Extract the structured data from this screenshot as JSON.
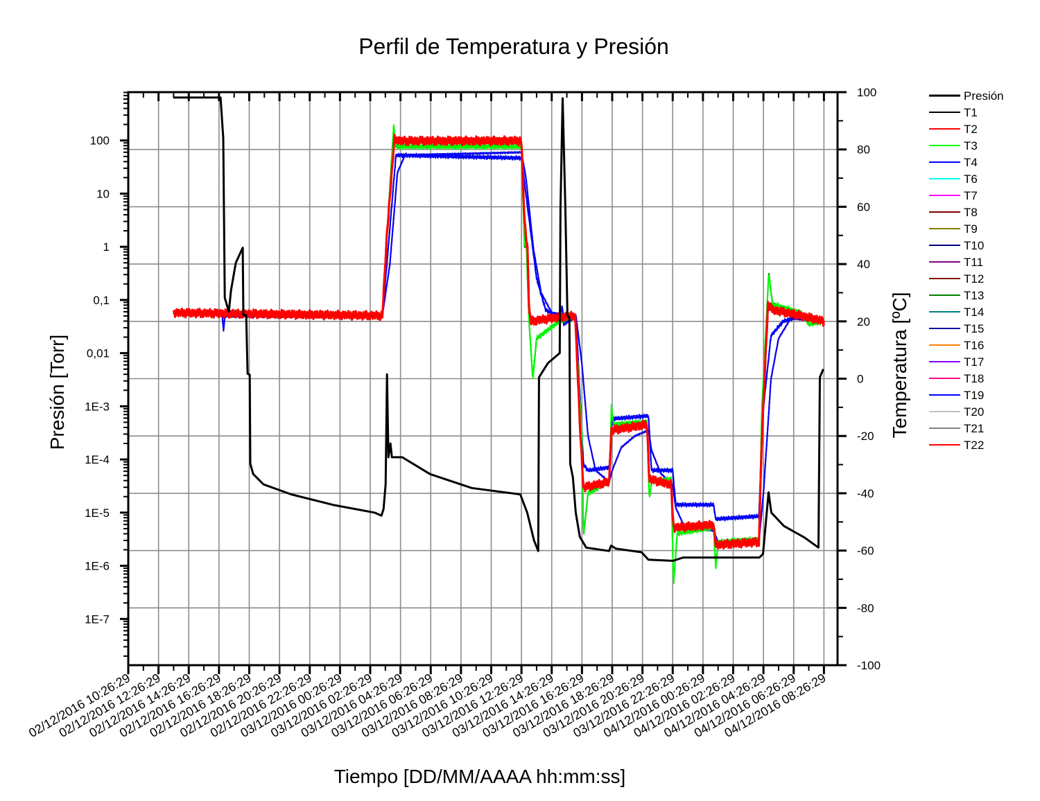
{
  "chart_data": {
    "type": "line",
    "title": "Perfil de Temperatura y Presión",
    "xlabel": "Tiempo [DD/MM/AAAA hh:mm:ss]",
    "ylabel_left": "Presión [Torr]",
    "ylabel_right": "Temperatura [ºC]",
    "x_unit": "hours since 02/12/2016 10:26:29",
    "xlim": [
      0,
      46.9
    ],
    "ylim_left": [
      1.35e-08,
      810
    ],
    "yscale_left": "log",
    "ylim_right": [
      -100,
      100
    ],
    "grid": true,
    "legend_position": "right",
    "x_tick_labels": [
      "02/12/2016 10:26:29",
      "02/12/2016 12:26:29",
      "02/12/2016 14:26:29",
      "02/12/2016 16:26:29",
      "02/12/2016 18:26:29",
      "02/12/2016 20:26:29",
      "02/12/2016 22:26:29",
      "03/12/2016 00:26:29",
      "03/12/2016 02:26:29",
      "03/12/2016 04:26:29",
      "03/12/2016 06:26:29",
      "03/12/2016 08:26:29",
      "03/12/2016 10:26:29",
      "03/12/2016 12:26:29",
      "03/12/2016 14:26:29",
      "03/12/2016 16:26:29",
      "03/12/2016 18:26:29",
      "03/12/2016 20:26:29",
      "03/12/2016 22:26:29",
      "04/12/2016 00:26:29",
      "04/12/2016 02:26:29",
      "04/12/2016 04:26:29",
      "04/12/2016 06:26:29",
      "04/12/2016 08:26:29"
    ],
    "x_tick_step_hours": 2,
    "left_ticks": [
      {
        "value": 100,
        "label": "100"
      },
      {
        "value": 10,
        "label": "10"
      },
      {
        "value": 1,
        "label": "1"
      },
      {
        "value": 0.1,
        "label": "0,1"
      },
      {
        "value": 0.01,
        "label": "0,01"
      },
      {
        "value": 0.001,
        "label": "1E-3"
      },
      {
        "value": 0.0001,
        "label": "1E-4"
      },
      {
        "value": 1e-05,
        "label": "1E-5"
      },
      {
        "value": 1e-06,
        "label": "1E-6"
      },
      {
        "value": 1e-07,
        "label": "1E-7"
      }
    ],
    "right_ticks": [
      {
        "value": 100,
        "label": "100"
      },
      {
        "value": 80,
        "label": "80"
      },
      {
        "value": 60,
        "label": "60"
      },
      {
        "value": 40,
        "label": "40"
      },
      {
        "value": 20,
        "label": "20"
      },
      {
        "value": 0,
        "label": "0"
      },
      {
        "value": -20,
        "label": "-20"
      },
      {
        "value": -40,
        "label": "-40"
      },
      {
        "value": -60,
        "label": "-60"
      },
      {
        "value": -80,
        "label": "-80"
      },
      {
        "value": -100,
        "label": "-100"
      }
    ],
    "pressure": {
      "name": "Presión",
      "color": "#000000",
      "axis": "left",
      "x": [
        2.98,
        6.1,
        6.28,
        6.38,
        6.65,
        6.79,
        7.11,
        7.57,
        7.61,
        7.8,
        7.89,
        8.03,
        8.07,
        8.26,
        8.94,
        10.78,
        13.53,
        16.28,
        16.74,
        16.88,
        17.02,
        17.11,
        17.2,
        17.34,
        17.43,
        18.12,
        19.95,
        22.71,
        25.92,
        26.38,
        26.83,
        27.11,
        27.16,
        27.75,
        28.53,
        28.58,
        28.72,
        28.9,
        29.04,
        29.17,
        29.22,
        29.4,
        29.59,
        29.86,
        30.28,
        31.79,
        31.93,
        32.25,
        33.94,
        34.4,
        36.01,
        36.7,
        41.74,
        41.97,
        42.34,
        42.52,
        43.35,
        44.72,
        45.64,
        45.73,
        45.96
      ],
      "y": [
        641,
        641,
        110,
        0.11,
        0.06,
        0.148,
        0.5,
        0.96,
        0.052,
        0.052,
        0.0041,
        0.0039,
        8.3e-05,
        5.3e-05,
        3.4e-05,
        2.2e-05,
        1.4e-05,
        1e-05,
        8.8e-06,
        1.17e-05,
        3.4e-05,
        0.004,
        0.00011,
        0.0002,
        0.00011,
        0.00011,
        5.3e-05,
        2.9e-05,
        2.2e-05,
        1e-05,
        3e-06,
        1.9e-06,
        0.0035,
        0.0065,
        0.01,
        5.5,
        620,
        5.5,
        0.052,
        0.045,
        8.3e-05,
        4.6e-05,
        1e-05,
        3.5e-06,
        2.2e-06,
        1.9e-06,
        2.4e-06,
        2.1e-06,
        1.8e-06,
        1.3e-06,
        1.24e-06,
        1.43e-06,
        1.43e-06,
        1.67e-06,
        2.4e-05,
        1e-05,
        5.6e-06,
        3.4e-06,
        2.2e-06,
        0.0035,
        0.005
      ]
    },
    "temperature_profiles": {
      "fast": {
        "x": [
          3.0,
          16.8,
          17.1,
          17.6,
          17.9,
          26.0,
          26.2,
          26.4,
          26.5,
          26.6,
          28.5,
          29.55,
          29.9,
          30.1,
          31.8,
          31.95,
          34.3,
          34.45,
          35.9,
          36.05,
          38.7,
          38.85,
          41.7,
          41.9,
          42.3,
          42.6,
          44.5,
          46.0
        ],
        "y": [
          23,
          22,
          50,
          84,
          83,
          83,
          55,
          45,
          25,
          20,
          21.5,
          22,
          -20,
          -38,
          -36,
          -18,
          -16,
          -35,
          -37,
          -52,
          -51,
          -58,
          -57,
          -20,
          26,
          24,
          22,
          20
        ]
      },
      "overshoot": {
        "x": [
          3.0,
          16.8,
          17.1,
          17.55,
          17.7,
          26.0,
          26.2,
          26.3,
          26.5,
          26.75,
          27.0,
          28.5,
          29.55,
          30.0,
          30.1,
          30.4,
          31.8,
          31.95,
          32.1,
          34.3,
          34.45,
          34.6,
          35.9,
          36.05,
          36.3,
          38.7,
          38.85,
          39.0,
          41.7,
          41.9,
          42.35,
          42.6,
          44.5,
          45.0,
          46.0
        ],
        "y": [
          23,
          22,
          50,
          88,
          81,
          81,
          45,
          50,
          20,
          0,
          14,
          20,
          22,
          -20,
          -55,
          -40,
          -36,
          -10,
          -16,
          -15,
          -42,
          -36,
          -35,
          -72,
          -54,
          -52,
          -66,
          -57,
          -56,
          -10,
          37,
          26,
          23,
          19,
          20
        ]
      },
      "offset": {
        "x": [
          3.0,
          6.2,
          6.3,
          6.4,
          16.8,
          17.1,
          17.7,
          26.0,
          26.4,
          27.0,
          27.6,
          28.5,
          28.7,
          28.8,
          29.6,
          30.1,
          30.4,
          31.8,
          32.0,
          34.4,
          34.6,
          36.0,
          36.2,
          38.7,
          38.85,
          41.7,
          42.0,
          42.5,
          43.3,
          44.5,
          46.0
        ],
        "y": [
          23,
          23,
          17,
          22,
          22,
          40,
          78,
          77,
          60,
          35,
          24,
          21.5,
          25,
          19,
          22,
          -30,
          -32,
          -31,
          -14,
          -13,
          -32,
          -32,
          -44,
          -44,
          -49,
          -48,
          -10,
          15,
          20,
          22,
          20
        ]
      },
      "slow": {
        "x": [
          3.0,
          16.8,
          17.3,
          17.8,
          18.3,
          26.0,
          26.3,
          26.8,
          27.3,
          28.0,
          29.6,
          30.0,
          30.4,
          30.9,
          31.8,
          32.0,
          32.6,
          33.5,
          34.4,
          34.6,
          35.2,
          36.0,
          36.2,
          36.8,
          38.7,
          39.0,
          41.7,
          42.0,
          42.5,
          43.0,
          43.8,
          46.0
        ],
        "y": [
          23,
          22,
          40,
          72,
          78,
          79,
          70,
          45,
          30,
          23,
          22,
          5,
          -20,
          -32,
          -36,
          -32,
          -24,
          -20,
          -18,
          -25,
          -33,
          -37,
          -45,
          -52,
          -53,
          -57,
          -57,
          -40,
          0,
          14,
          21,
          20
        ]
      }
    },
    "series": [
      {
        "name": "T1",
        "color": "#000000",
        "profile": "fast",
        "noise": 0.6
      },
      {
        "name": "T2",
        "color": "#ff0000",
        "profile": "fast",
        "noise": 1.4
      },
      {
        "name": "T3",
        "color": "#00ff00",
        "profile": "overshoot",
        "noise": 1.0
      },
      {
        "name": "T4",
        "color": "#0000ff",
        "profile": "offset",
        "noise": 0.8
      },
      {
        "name": "T6",
        "color": "#00ffff",
        "profile": "slow",
        "noise": 0.2
      },
      {
        "name": "T7",
        "color": "#ff00ff",
        "profile": "slow",
        "noise": 0.2
      },
      {
        "name": "T8",
        "color": "#800000",
        "profile": "fast",
        "noise": 0.5
      },
      {
        "name": "T9",
        "color": "#808000",
        "profile": "fast",
        "noise": 0.5
      },
      {
        "name": "T10",
        "color": "#000080",
        "profile": "fast",
        "noise": 0.5
      },
      {
        "name": "T11",
        "color": "#800080",
        "profile": "slow",
        "noise": 0.2
      },
      {
        "name": "T12",
        "color": "#800000",
        "profile": "fast",
        "noise": 0.5
      },
      {
        "name": "T13",
        "color": "#008000",
        "profile": "overshoot",
        "noise": 0.5
      },
      {
        "name": "T14",
        "color": "#008080",
        "profile": "fast",
        "noise": 0.5
      },
      {
        "name": "T15",
        "color": "#0000a0",
        "profile": "offset",
        "noise": 0.5
      },
      {
        "name": "T16",
        "color": "#ff8000",
        "profile": "fast",
        "noise": 0.5
      },
      {
        "name": "T17",
        "color": "#8000ff",
        "profile": "slow",
        "noise": 0.2
      },
      {
        "name": "T18",
        "color": "#ff0080",
        "profile": "slow",
        "noise": 0.2
      },
      {
        "name": "T19",
        "color": "#0000ff",
        "profile": "slow",
        "noise": 0.3
      },
      {
        "name": "T20",
        "color": "#c0c0c0",
        "profile": "slow",
        "noise": 0.2
      },
      {
        "name": "T21",
        "color": "#808080",
        "profile": "slow",
        "noise": 0.2
      },
      {
        "name": "T22",
        "color": "#ff0000",
        "profile": "fast",
        "noise": 1.6
      }
    ],
    "draw_order": [
      "T6",
      "T7",
      "T11",
      "T17",
      "T18",
      "T20",
      "T21",
      "T19",
      "T1",
      "T8",
      "T9",
      "T10",
      "T12",
      "T14",
      "T16",
      "T13",
      "T15",
      "T4",
      "T3",
      "T2",
      "T22"
    ]
  }
}
